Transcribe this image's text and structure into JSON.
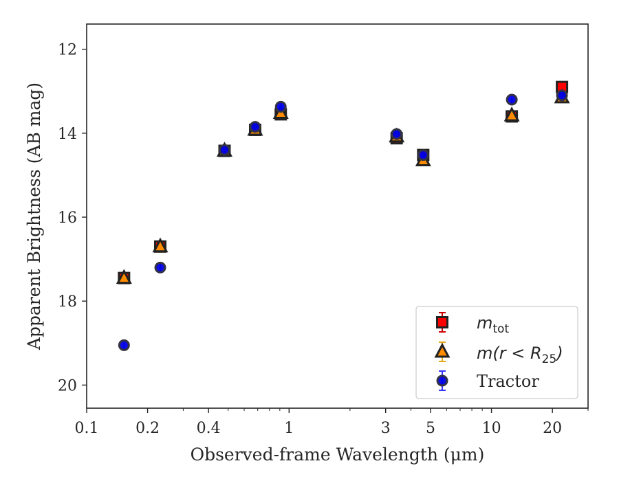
{
  "chart_data": {
    "type": "scatter",
    "xscale": "log",
    "yinverted": true,
    "xlim": [
      0.1,
      30
    ],
    "ylim": [
      20.55,
      11.4
    ],
    "xlabel": "Observed-frame Wavelength (μm)",
    "ylabel": "Apparent Brightness (AB mag)",
    "xticks": [
      {
        "value": 0.1,
        "label": "0.1"
      },
      {
        "value": 0.2,
        "label": "0.2"
      },
      {
        "value": 0.4,
        "label": "0.4"
      },
      {
        "value": 1,
        "label": "1"
      },
      {
        "value": 3,
        "label": "3"
      },
      {
        "value": 5,
        "label": "5"
      },
      {
        "value": 10,
        "label": "10"
      },
      {
        "value": 20,
        "label": "20"
      }
    ],
    "yticks": [
      {
        "value": 12,
        "label": "12"
      },
      {
        "value": 14,
        "label": "14"
      },
      {
        "value": 16,
        "label": "16"
      },
      {
        "value": 18,
        "label": "18"
      },
      {
        "value": 20,
        "label": "20"
      }
    ],
    "grid": false,
    "legend_position": "lower-right",
    "series": [
      {
        "key": "mtot",
        "marker": "square",
        "color": "#ff0000",
        "errcolor": "#cc0000",
        "points": [
          {
            "x": 0.153,
            "y": 17.45
          },
          {
            "x": 0.231,
            "y": 16.7
          },
          {
            "x": 0.48,
            "y": 14.42
          },
          {
            "x": 0.68,
            "y": 13.92
          },
          {
            "x": 0.91,
            "y": 13.55
          },
          {
            "x": 3.4,
            "y": 14.12
          },
          {
            "x": 4.6,
            "y": 14.52
          },
          {
            "x": 12.6,
            "y": 13.6
          },
          {
            "x": 22.3,
            "y": 12.9
          }
        ]
      },
      {
        "key": "mr25",
        "marker": "triangle",
        "color": "#ff8c00",
        "errcolor": "#e6a817",
        "points": [
          {
            "x": 0.153,
            "y": 17.45
          },
          {
            "x": 0.231,
            "y": 16.7
          },
          {
            "x": 0.48,
            "y": 14.42
          },
          {
            "x": 0.68,
            "y": 13.92
          },
          {
            "x": 0.91,
            "y": 13.52
          },
          {
            "x": 3.4,
            "y": 14.08
          },
          {
            "x": 4.6,
            "y": 14.65
          },
          {
            "x": 12.6,
            "y": 13.58
          },
          {
            "x": 22.3,
            "y": 13.15
          }
        ]
      },
      {
        "key": "tractor",
        "name": "Tractor",
        "marker": "circle",
        "color": "#0000e6",
        "errcolor": "#3333ff",
        "points": [
          {
            "x": 0.153,
            "y": 19.05
          },
          {
            "x": 0.231,
            "y": 17.2
          },
          {
            "x": 0.48,
            "y": 14.4
          },
          {
            "x": 0.68,
            "y": 13.85
          },
          {
            "x": 0.91,
            "y": 13.37
          },
          {
            "x": 3.4,
            "y": 14.02
          },
          {
            "x": 4.6,
            "y": 14.52
          },
          {
            "x": 12.6,
            "y": 13.2
          },
          {
            "x": 22.3,
            "y": 13.1
          }
        ]
      }
    ]
  },
  "legend": {
    "mtot": {
      "base": "m",
      "sub": "tot"
    },
    "mr25": {
      "base": "m",
      "open": "(r < R",
      "sub": "25",
      "close": ")"
    },
    "tractor": {
      "label": "Tractor"
    }
  }
}
